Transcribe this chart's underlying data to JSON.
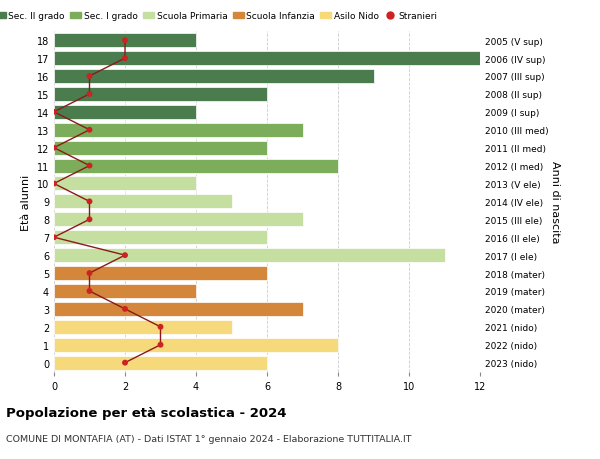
{
  "ages": [
    18,
    17,
    16,
    15,
    14,
    13,
    12,
    11,
    10,
    9,
    8,
    7,
    6,
    5,
    4,
    3,
    2,
    1,
    0
  ],
  "right_labels": [
    "2005 (V sup)",
    "2006 (IV sup)",
    "2007 (III sup)",
    "2008 (II sup)",
    "2009 (I sup)",
    "2010 (III med)",
    "2011 (II med)",
    "2012 (I med)",
    "2013 (V ele)",
    "2014 (IV ele)",
    "2015 (III ele)",
    "2016 (II ele)",
    "2017 (I ele)",
    "2018 (mater)",
    "2019 (mater)",
    "2020 (mater)",
    "2021 (nido)",
    "2022 (nido)",
    "2023 (nido)"
  ],
  "bar_values": [
    4,
    13,
    9,
    6,
    4,
    7,
    6,
    8,
    4,
    5,
    7,
    6,
    11,
    6,
    4,
    7,
    5,
    8,
    6
  ],
  "bar_colors": [
    "#4a7c4e",
    "#4a7c4e",
    "#4a7c4e",
    "#4a7c4e",
    "#4a7c4e",
    "#7cad5a",
    "#7cad5a",
    "#7cad5a",
    "#c5dfa0",
    "#c5dfa0",
    "#c5dfa0",
    "#c5dfa0",
    "#c5dfa0",
    "#d4873a",
    "#d4873a",
    "#d4873a",
    "#f5d97a",
    "#f5d97a",
    "#f5d97a"
  ],
  "stranieri_values": [
    2,
    2,
    1,
    1,
    0,
    1,
    0,
    1,
    0,
    1,
    1,
    0,
    2,
    1,
    1,
    2,
    3,
    3,
    2
  ],
  "legend_labels": [
    "Sec. II grado",
    "Sec. I grado",
    "Scuola Primaria",
    "Scuola Infanzia",
    "Asilo Nido",
    "Stranieri"
  ],
  "legend_colors": [
    "#4a7c4e",
    "#7cad5a",
    "#c5dfa0",
    "#d4873a",
    "#f5d97a",
    "#cc2222"
  ],
  "title": "Popolazione per età scolastica - 2024",
  "subtitle": "COMUNE DI MONTAFIA (AT) - Dati ISTAT 1° gennaio 2024 - Elaborazione TUTTITALIA.IT",
  "ylabel": "Età alunni",
  "ylabel_right": "Anni di nascita",
  "xlim": [
    0,
    12
  ],
  "ylim": [
    -0.5,
    18.5
  ],
  "xticks": [
    0,
    2,
    4,
    6,
    8,
    10,
    12
  ],
  "background_color": "#ffffff",
  "grid_color": "#cccccc"
}
